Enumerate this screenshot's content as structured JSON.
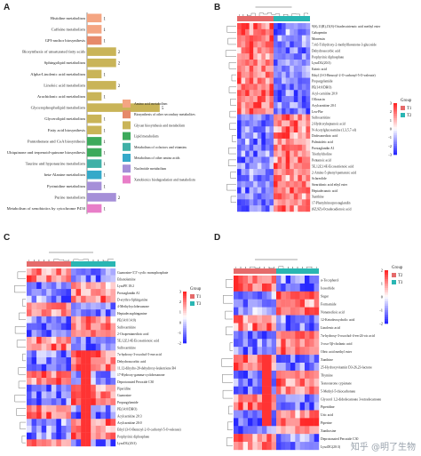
{
  "panels": {
    "A": {
      "label": "A",
      "chart_data": {
        "type": "bar",
        "orientation": "horizontal",
        "categories": [
          "Histidine metabolism",
          "Caffeine metabolism",
          "GPI-anchor biosynthesis",
          "Biosynthesis of unsaturated fatty acids",
          "Sphingolipid metabolism",
          "Alpha-Linolenic acid metabolism",
          "Linoleic acid metabolism",
          "Arachidonic acid metabolism",
          "Glycerophospholipid metabolism",
          "Glycerolipid metabolism",
          "Fatty acid biosynthesis",
          "Pantothenate and CoA biosynthesis",
          "Ubiquinone and terpenoid-quinone biosynthesis",
          "Taurine and hypotaurine metabolism",
          "beta-Alanine metabolism",
          "Pyrimidine metabolism",
          "Purine metabolism",
          "Metabolism of xenobiotics by cytochrome P450"
        ],
        "values": [
          1,
          1,
          1,
          2,
          2,
          1,
          2,
          1,
          5,
          1,
          1,
          1,
          1,
          1,
          1,
          1,
          2,
          1
        ],
        "group_index": [
          0,
          0,
          1,
          2,
          2,
          2,
          2,
          2,
          2,
          2,
          2,
          3,
          3,
          4,
          5,
          6,
          6,
          7
        ],
        "legend": [
          {
            "name": "Amino acid metabolism",
            "color": "#f4a582"
          },
          {
            "name": "Biosynthesis of other secondary metabolites",
            "color": "#e68a6a"
          },
          {
            "name": "Glycan biosynthesis and metabolism",
            "color": "#c9b458"
          },
          {
            "name": "Lipid metabolism",
            "color": "#3daa5c"
          },
          {
            "name": "Metabolism of cofactors and vitamins",
            "color": "#3fb0a6"
          },
          {
            "name": "Metabolism of other amino acids",
            "color": "#35a9c9"
          },
          {
            "name": "Nucleotide metabolism",
            "color": "#a58fd8"
          },
          {
            "name": "Xenobiotics biodegradation and metabolism",
            "color": "#e87ec8"
          }
        ],
        "xlim": [
          0,
          5.5
        ]
      }
    },
    "B": {
      "label": "B",
      "rows": [
        "9(S),11(R),15(S)-Octadecatrienoic acid methyl ester",
        "Gabapentin",
        "Monensin",
        "7,4,6-Trihydroxy-2-methylflavanone-3-glucoside",
        "Dehydroascorbic acid",
        "Porphyrinic diphosphate",
        "LysoDG(20:3)",
        "Kainic acid",
        "Ethyl (3-O-Benzoyl-2-O-carbonyl-5-O-valerate)",
        "Propargylamide",
        "PE(14:0/DHO)",
        "Acyl-carnitine 20:0",
        "Ofloxacin",
        "Acylcarnitine 20:1",
        "Leu-Phe",
        "Sulfocarnitine",
        "2-Hydroxyheptanoic acid",
        "N-Acetylglucosamine (1,3,5,7-ol)",
        "Dodecanedioic acid",
        "Palmitoleic acid",
        "Prostaglandin A1",
        "Triethylcholine",
        "Pentanoic acid",
        "5E,12Z,14E-Eicosatrienoic acid",
        "2-Amino-5-phenyl-pentanoic acid",
        "Sclareolide",
        "Stearidonic acid ethyl ester",
        "Heptadecanoic acid",
        "Xanthine",
        "17-Phenyltrinorprostaglandin",
        "(6Z,9Z)-Octadecadienoic acid"
      ],
      "legend_title": "Group",
      "groups": [
        "T1",
        "T2"
      ],
      "group_colors": [
        "#e56a6a",
        "#2ab6b3"
      ],
      "scale_ticks": [
        "3",
        "2",
        "1",
        "0",
        "-1",
        "-2",
        "-3"
      ]
    },
    "C": {
      "label": "C",
      "rows": [
        "Guanosine-3',5'-cyclic monophosphate",
        "Ethanolamine",
        "LysoPE 18:2",
        "Prostaglandin A1",
        "D-erythro-Sphinganine",
        "4-Methylcyclohexanone",
        "Heptadecasphinganine",
        "PE(14:0/14:0)",
        "Sulfocarnitine",
        "2-Oxopentanedioic acid",
        "5E,12Z,14E-Eicosatrienoic acid",
        "Sulfocarnitine",
        "7a-hydroxy-3-oxochol-5-ene acid",
        "Dehydroascorbic acid",
        "11,12-dihydro-20-dehydroxy-leukotriene B4",
        "17-Hydroxy-gamma-cyclohexanone",
        "Deprotonated Peroxide C30",
        "Piperidine",
        "Guanosine",
        "Propargylamide",
        "PE(14:0/DHO)",
        "Acylcarnitine 20:3",
        "Acylcarnitine 20:0",
        "Ethyl (3-O-Benzoyl-2-O-carbonyl-5-O-valerate)",
        "Porphyrinic diphosphate",
        "LysoDG(20:3)"
      ],
      "legend_title": "Group",
      "groups": [
        "T1",
        "T3"
      ],
      "group_colors": [
        "#e56a6a",
        "#2ab6b3"
      ],
      "scale_ticks": [
        "3",
        "2",
        "1",
        "0",
        "-1",
        "-2"
      ]
    },
    "D": {
      "label": "D",
      "rows": [
        "α-Tocopherol",
        "Isosorbide",
        "Sugar",
        "Formamide",
        "Nonanedioic acid",
        "12-Ketodeoxycholic acid",
        "Linolenic acid",
        "7α-hydroxy-3-oxochol-4-en-24-oic acid",
        "3-oxo-5β-cholanic acid",
        "Oleic acid methyl ester",
        "Xanthine",
        "25-Hydroxyvitamin D3-26,23-lactone",
        "Thymine",
        "Testosterone cypionate",
        "5-Methyl-5-thiocarbonate",
        "Glycerol 1,2-didodecanoate 3-tetradecanoate",
        "Piperidine",
        "Uric acid",
        "Piperine",
        "Xanthosine",
        "Deprotonated Peroxide C30",
        "LysoDG(20:3)"
      ],
      "legend_title": "Group",
      "groups": [
        "T2",
        "T3"
      ],
      "group_colors": [
        "#e56a6a",
        "#2ab6b3"
      ],
      "scale_ticks": [
        "2",
        "1",
        "0",
        "-1",
        "-2"
      ]
    }
  },
  "watermark": "知乎 @明了生物"
}
